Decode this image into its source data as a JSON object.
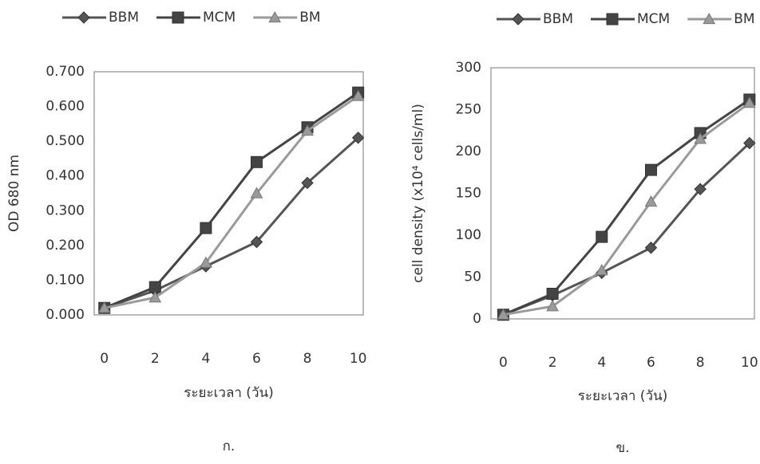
{
  "chart_data": [
    {
      "type": "line",
      "caption": "ก.",
      "xlabel": "ระยะเวลา (วัน)",
      "ylabel": "OD 680 nm",
      "x": [
        0,
        2,
        4,
        6,
        8,
        10
      ],
      "xlim": [
        -0.4,
        10.2
      ],
      "xticks": [
        0,
        2,
        4,
        6,
        8,
        10
      ],
      "ylim": [
        0,
        0.7
      ],
      "yticks": [
        {
          "value": 0,
          "label": "0.000"
        },
        {
          "value": 0.1,
          "label": "0.100"
        },
        {
          "value": 0.2,
          "label": "0.200"
        },
        {
          "value": 0.3,
          "label": "0.300"
        },
        {
          "value": 0.4,
          "label": "0.400"
        },
        {
          "value": 0.5,
          "label": "0.500"
        },
        {
          "value": 0.6,
          "label": "0.600"
        },
        {
          "value": 0.7,
          "label": "0.700"
        }
      ],
      "grid": false,
      "series": [
        {
          "name": "BBM",
          "color": "#555555",
          "marker": "diamond",
          "values": [
            0.02,
            0.07,
            0.14,
            0.21,
            0.38,
            0.51
          ]
        },
        {
          "name": "MCM",
          "color": "#444444",
          "marker": "square",
          "values": [
            0.02,
            0.08,
            0.25,
            0.44,
            0.54,
            0.64
          ]
        },
        {
          "name": "BM",
          "color": "#9a9a9a",
          "marker": "triangle",
          "values": [
            0.02,
            0.05,
            0.15,
            0.35,
            0.53,
            0.63
          ]
        }
      ]
    },
    {
      "type": "line",
      "caption": "ข.",
      "xlabel": "ระยะเวลา (วัน)",
      "ylabel": "cell density  (x10⁴ cells/ml)",
      "x": [
        0,
        2,
        4,
        6,
        8,
        10
      ],
      "xlim": [
        -0.5,
        10.2
      ],
      "xticks": [
        0,
        2,
        4,
        6,
        8,
        10
      ],
      "ylim": [
        0,
        300
      ],
      "yticks": [
        0,
        50,
        100,
        150,
        200,
        250,
        300
      ],
      "grid": false,
      "series": [
        {
          "name": "BBM",
          "color": "#555555",
          "marker": "diamond",
          "values": [
            5,
            28,
            55,
            85,
            155,
            210
          ]
        },
        {
          "name": "MCM",
          "color": "#444444",
          "marker": "square",
          "values": [
            5,
            30,
            98,
            178,
            222,
            262
          ]
        },
        {
          "name": "BM",
          "color": "#9a9a9a",
          "marker": "triangle",
          "values": [
            5,
            15,
            58,
            140,
            215,
            258
          ]
        }
      ]
    }
  ]
}
